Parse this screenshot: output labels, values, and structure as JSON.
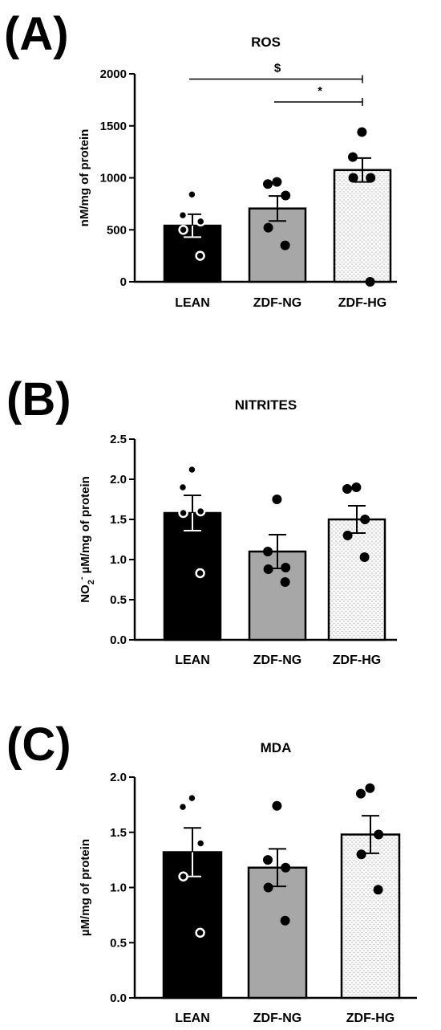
{
  "chart_data": [
    {
      "panel": "(A)",
      "type": "bar",
      "title": "ROS",
      "ylabel": "nM/mg of protein",
      "categories": [
        "LEAN",
        "ZDF-NG",
        "ZDF-HG"
      ],
      "values": [
        540,
        705,
        1075
      ],
      "sem": [
        110,
        120,
        115
      ],
      "ylim": [
        0,
        2000
      ],
      "yticks": [
        0,
        500,
        1000,
        1500,
        2000
      ],
      "ytick_labels": [
        "0",
        "500",
        "1000",
        "1500",
        "2000"
      ],
      "points": [
        [
          840,
          640,
          580,
          500,
          250
        ],
        [
          960,
          940,
          830,
          520,
          350
        ],
        [
          1440,
          1200,
          1000,
          1000,
          0
        ]
      ],
      "significance": [
        {
          "from": 0,
          "to": 2,
          "y": 1950,
          "label": "$"
        },
        {
          "from": 1,
          "to": 2,
          "y": 1730,
          "label": "*"
        }
      ]
    },
    {
      "panel": "(B)",
      "type": "bar",
      "title": "NITRITES",
      "ylabel": "NO2- µM/mg of protein",
      "ylabel_parts": {
        "base": "NO",
        "sub": "2",
        "sup": "-",
        "rest": " µM/mg of protein"
      },
      "categories": [
        "LEAN",
        "ZDF-NG",
        "ZDF-HG"
      ],
      "values": [
        1.58,
        1.1,
        1.5
      ],
      "sem": [
        0.22,
        0.21,
        0.17
      ],
      "ylim": [
        0,
        2.5
      ],
      "yticks": [
        0,
        0.5,
        1.0,
        1.5,
        2.0,
        2.5
      ],
      "ytick_labels": [
        "0.0",
        "0.5",
        "1.0",
        "1.5",
        "2.0",
        "2.5"
      ],
      "points": [
        [
          2.12,
          1.9,
          1.6,
          1.58,
          0.83
        ],
        [
          1.75,
          1.1,
          0.9,
          0.88,
          0.72
        ],
        [
          1.9,
          1.88,
          1.5,
          1.3,
          1.03
        ]
      ]
    },
    {
      "panel": "(C)",
      "type": "bar",
      "title": "MDA",
      "ylabel": "µM/mg of protein",
      "categories": [
        "LEAN",
        "ZDF-NG",
        "ZDF-HG"
      ],
      "values": [
        1.32,
        1.18,
        1.48
      ],
      "sem": [
        0.22,
        0.17,
        0.17
      ],
      "ylim": [
        0,
        2.0
      ],
      "yticks": [
        0,
        0.5,
        1.0,
        1.5,
        2.0
      ],
      "ytick_labels": [
        "0.0",
        "0.5",
        "1.0",
        "1.5",
        "2.0"
      ],
      "points": [
        [
          1.81,
          1.73,
          1.4,
          1.1,
          0.59
        ],
        [
          1.74,
          1.25,
          1.18,
          1.0,
          0.7
        ],
        [
          1.9,
          1.85,
          1.48,
          1.3,
          0.98
        ]
      ]
    }
  ],
  "style": {
    "bar_fills": [
      "#000000",
      "#a7a7a7",
      "#f7f7f7"
    ],
    "bar_pattern": [
      "solid",
      "solid",
      "dotted"
    ],
    "point_styles": [
      "open-white",
      "filled-black",
      "filled-black"
    ]
  }
}
